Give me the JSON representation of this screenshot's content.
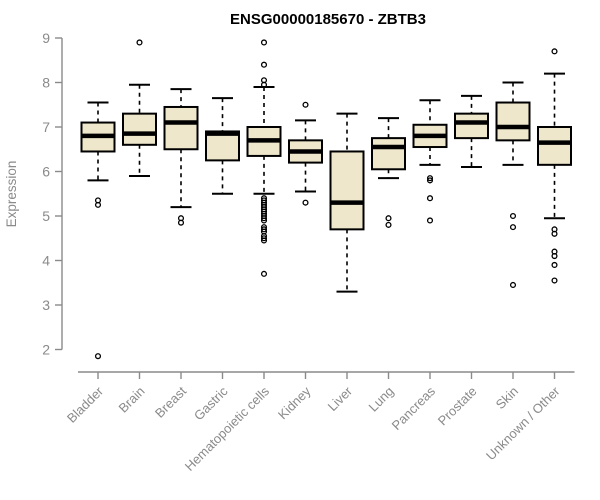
{
  "chart_data": {
    "type": "box",
    "title": "ENSG00000185670 - ZBTB3",
    "ylabel": "Expression",
    "xlabel": "",
    "ylim": [
      2,
      9
    ],
    "yticks": [
      2,
      3,
      4,
      5,
      6,
      7,
      8,
      9
    ],
    "grid": false,
    "legend": false,
    "box_fill": "#eee7cc",
    "box_stroke": "#000000",
    "median_color": "#000000",
    "whisker_style": "dashed",
    "outlier_marker": "open-circle",
    "axis_color": "#8a8a8a",
    "label_color": "#8a8a8a",
    "categories": [
      "Bladder",
      "Brain",
      "Breast",
      "Gastric",
      "Hematopoietic cells",
      "Kidney",
      "Liver",
      "Lung",
      "Pancreas",
      "Prostate",
      "Skin",
      "Unknown / Other"
    ],
    "series": [
      {
        "name": "Bladder",
        "low": 5.8,
        "q1": 6.45,
        "median": 6.8,
        "q3": 7.1,
        "high": 7.55,
        "outliers": [
          5.35,
          5.25,
          1.85
        ]
      },
      {
        "name": "Brain",
        "low": 5.9,
        "q1": 6.6,
        "median": 6.85,
        "q3": 7.3,
        "high": 7.95,
        "outliers": [
          8.9
        ]
      },
      {
        "name": "Breast",
        "low": 5.2,
        "q1": 6.5,
        "median": 7.1,
        "q3": 7.45,
        "high": 7.85,
        "outliers": [
          4.95,
          4.85
        ]
      },
      {
        "name": "Gastric",
        "low": 5.5,
        "q1": 6.25,
        "median": 6.85,
        "q3": 6.9,
        "high": 7.65,
        "outliers": []
      },
      {
        "name": "Hematopoietic cells",
        "low": 5.5,
        "q1": 6.35,
        "median": 6.7,
        "q3": 7.0,
        "high": 7.9,
        "outliers": [
          8.9,
          8.4,
          8.05,
          7.95,
          5.4,
          5.35,
          5.3,
          5.25,
          5.2,
          5.15,
          5.1,
          5.05,
          5.0,
          4.95,
          4.9,
          4.75,
          4.7,
          4.65,
          4.55,
          4.5,
          4.45,
          3.7
        ]
      },
      {
        "name": "Kidney",
        "low": 5.55,
        "q1": 6.2,
        "median": 6.45,
        "q3": 6.7,
        "high": 7.15,
        "outliers": [
          7.5,
          5.3
        ]
      },
      {
        "name": "Liver",
        "low": 3.3,
        "q1": 4.7,
        "median": 5.3,
        "q3": 6.45,
        "high": 7.3,
        "outliers": []
      },
      {
        "name": "Lung",
        "low": 5.85,
        "q1": 6.05,
        "median": 6.55,
        "q3": 6.75,
        "high": 7.2,
        "outliers": [
          4.95,
          4.8
        ]
      },
      {
        "name": "Pancreas",
        "low": 6.15,
        "q1": 6.55,
        "median": 6.8,
        "q3": 7.05,
        "high": 7.6,
        "outliers": [
          5.85,
          5.8,
          5.4,
          4.9
        ]
      },
      {
        "name": "Prostate",
        "low": 6.1,
        "q1": 6.75,
        "median": 7.1,
        "q3": 7.3,
        "high": 7.7,
        "outliers": []
      },
      {
        "name": "Skin",
        "low": 6.15,
        "q1": 6.7,
        "median": 7.0,
        "q3": 7.55,
        "high": 8.0,
        "outliers": [
          5.0,
          4.75,
          3.45
        ]
      },
      {
        "name": "Unknown / Other",
        "low": 4.95,
        "q1": 6.15,
        "median": 6.65,
        "q3": 7.0,
        "high": 8.2,
        "outliers": [
          8.7,
          4.7,
          4.6,
          4.2,
          4.1,
          3.9,
          3.55
        ]
      }
    ]
  }
}
